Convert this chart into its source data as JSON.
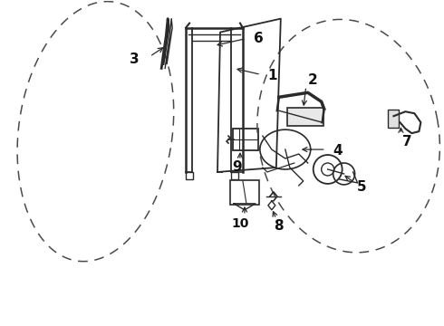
{
  "bg_color": "#ffffff",
  "fig_width": 4.9,
  "fig_height": 3.6,
  "dpi": 100,
  "line_color": "#2a2a2a",
  "dashed_color": "#4a4a4a",
  "label_color": "#111111"
}
